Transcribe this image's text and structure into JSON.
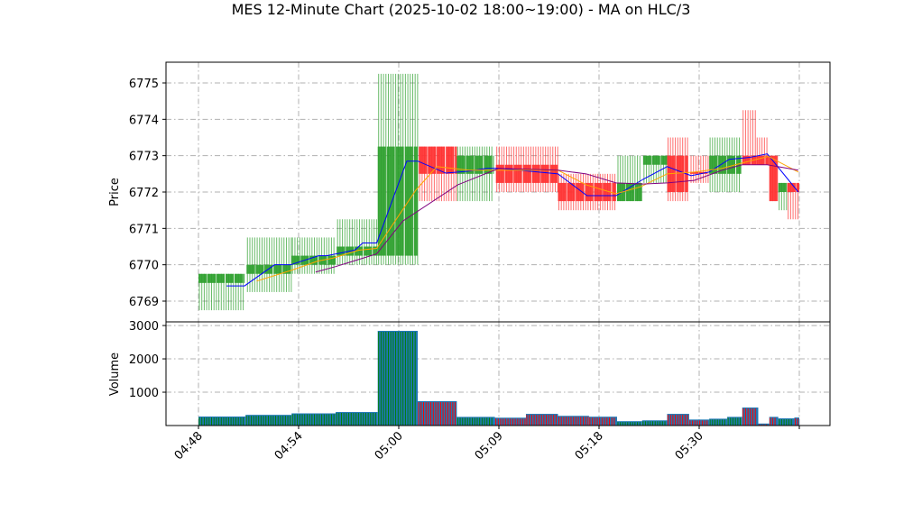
{
  "chart_data": [
    {
      "type": "candlestick",
      "title": "MES 12-Minute Chart (2025-10-02 18:00~19:00) - MA on HLC/3",
      "ylabel": "Price",
      "ylim": [
        6768.43,
        6775.57
      ],
      "yticks": [
        6769,
        6770,
        6771,
        6772,
        6773,
        6774,
        6775
      ],
      "grid": true,
      "colors": {
        "up": "#2ca02c",
        "down": "#ff3030",
        "ma_fast": "#0000ff",
        "ma_mid": "#ffa500",
        "ma_slow": "#800080"
      },
      "x_tick_labels": [
        "04:48",
        "04:54",
        "05:00",
        "05:09",
        "05:18",
        "05:30",
        ""
      ],
      "bars": [
        {
          "x": [
            0,
            0.46
          ],
          "o": 6769.5,
          "h": 6769.75,
          "l": 6768.75,
          "c": 6769.75
        },
        {
          "x": [
            0.48,
            0.93
          ],
          "o": 6769.75,
          "h": 6770.75,
          "l": 6769.25,
          "c": 6770.0
        },
        {
          "x": [
            0.93,
            1.37
          ],
          "o": 6770.0,
          "h": 6770.75,
          "l": 6769.75,
          "c": 6770.25
        },
        {
          "x": [
            1.38,
            1.79
          ],
          "o": 6770.25,
          "h": 6771.25,
          "l": 6770.0,
          "c": 6770.5
        },
        {
          "x": [
            1.79,
            2.19
          ],
          "o": 6770.25,
          "h": 6775.25,
          "l": 6770.0,
          "c": 6773.25
        },
        {
          "x": [
            2.2,
            2.58
          ],
          "o": 6773.25,
          "h": 6773.25,
          "l": 6771.75,
          "c": 6772.5
        },
        {
          "x": [
            2.58,
            2.95
          ],
          "o": 6772.5,
          "h": 6773.25,
          "l": 6771.75,
          "c": 6773.0
        },
        {
          "x": [
            2.97,
            3.59
          ],
          "o": 6772.75,
          "h": 6773.25,
          "l": 6772.0,
          "c": 6772.25
        },
        {
          "x": [
            3.59,
            4.17
          ],
          "o": 6772.25,
          "h": 6772.5,
          "l": 6771.5,
          "c": 6771.75
        },
        {
          "x": [
            4.18,
            4.43
          ],
          "o": 6771.75,
          "h": 6773.0,
          "l": 6771.75,
          "c": 6772.25
        },
        {
          "x": [
            4.44,
            4.68
          ],
          "o": 6772.75,
          "h": 6773.0,
          "l": 6772.25,
          "c": 6773.0
        },
        {
          "x": [
            4.68,
            4.89
          ],
          "o": 6773.0,
          "h": 6773.5,
          "l": 6771.75,
          "c": 6772.0
        },
        {
          "x": [
            4.91,
            5.09
          ],
          "o": 6772.55,
          "h": 6773.0,
          "l": 6772.25,
          "c": 6772.5
        },
        {
          "x": [
            5.1,
            5.42
          ],
          "o": 6772.5,
          "h": 6773.5,
          "l": 6772.0,
          "c": 6773.0
        },
        {
          "x": [
            5.43,
            5.57
          ],
          "o": 6773.0,
          "h": 6774.25,
          "l": 6772.75,
          "c": 6772.75
        },
        {
          "x": [
            5.57,
            5.7
          ],
          "o": 6773.0,
          "h": 6773.5,
          "l": 6772.75,
          "c": 6772.75
        },
        {
          "x": [
            5.7,
            5.79
          ],
          "o": 6773.0,
          "h": 6773.0,
          "l": 6771.75,
          "c": 6771.75
        },
        {
          "x": [
            5.79,
            5.88
          ],
          "o": 6772.0,
          "h": 6772.25,
          "l": 6771.5,
          "c": 6772.25
        },
        {
          "x": [
            5.88,
            6.0
          ],
          "o": 6772.25,
          "h": 6772.25,
          "l": 6771.25,
          "c": 6772.0
        }
      ],
      "series": [
        {
          "key": "ma_fast",
          "x": [
            0.28,
            0.46,
            0.76,
            0.92,
            1.2,
            1.28,
            1.56,
            1.64,
            1.78,
            2.08,
            2.19,
            2.47,
            2.68,
            2.88,
            3.01,
            3.59,
            3.88,
            4.17,
            4.44,
            4.68,
            4.92,
            5.1,
            5.3,
            5.5,
            5.68,
            5.99
          ],
          "y": [
            6769.42,
            6769.42,
            6770.0,
            6770.0,
            6770.25,
            6770.25,
            6770.4,
            6770.6,
            6770.6,
            6772.85,
            6772.85,
            6772.52,
            6772.57,
            6772.65,
            6772.65,
            6772.5,
            6771.9,
            6771.9,
            6772.35,
            6772.7,
            6772.45,
            6772.55,
            6772.9,
            6772.95,
            6773.05,
            6772.0
          ]
        },
        {
          "key": "ma_mid",
          "x": [
            0.58,
            0.93,
            1.19,
            1.34,
            1.6,
            1.78,
            2.17,
            2.38,
            2.7,
            2.97,
            3.59,
            3.87,
            4.17,
            4.42,
            4.68,
            4.95,
            5.23,
            5.43,
            5.69,
            5.99
          ],
          "y": [
            6769.55,
            6769.85,
            6770.1,
            6770.18,
            6770.4,
            6770.45,
            6772.05,
            6772.7,
            6772.6,
            6772.6,
            6772.6,
            6772.2,
            6771.95,
            6772.15,
            6772.5,
            6772.55,
            6772.65,
            6772.8,
            6772.98,
            6772.55
          ]
        },
        {
          "key": "ma_slow",
          "x": [
            1.17,
            1.37,
            1.78,
            2.04,
            2.59,
            3.0,
            3.59,
            3.87,
            4.17,
            4.44,
            4.68,
            4.95,
            5.23,
            5.43,
            5.68,
            5.99
          ],
          "y": [
            6769.8,
            6769.95,
            6770.3,
            6771.2,
            6772.2,
            6772.65,
            6772.6,
            6772.5,
            6772.25,
            6772.22,
            6772.25,
            6772.32,
            6772.6,
            6772.75,
            6772.75,
            6772.6
          ]
        }
      ]
    },
    {
      "type": "bar",
      "ylabel": "Volume",
      "ylim": [
        0,
        3110
      ],
      "yticks": [
        1000,
        2000,
        3000
      ],
      "grid": true,
      "colors": {
        "bar": "#1f77b4",
        "up": "#008000",
        "down": "#ff0000"
      },
      "bars": [
        {
          "x": [
            0,
            0.47
          ],
          "v": 270,
          "dir": "up"
        },
        {
          "x": [
            0.47,
            0.93
          ],
          "v": 320,
          "dir": "up"
        },
        {
          "x": [
            0.93,
            1.37
          ],
          "v": 365,
          "dir": "up"
        },
        {
          "x": [
            1.37,
            1.79
          ],
          "v": 405,
          "dir": "up"
        },
        {
          "x": [
            1.79,
            2.19
          ],
          "v": 2840,
          "dir": "up"
        },
        {
          "x": [
            2.19,
            2.58
          ],
          "v": 730,
          "dir": "down"
        },
        {
          "x": [
            2.58,
            2.96
          ],
          "v": 260,
          "dir": "up"
        },
        {
          "x": [
            2.96,
            3.27
          ],
          "v": 235,
          "dir": "down"
        },
        {
          "x": [
            3.27,
            3.59
          ],
          "v": 350,
          "dir": "down"
        },
        {
          "x": [
            3.59,
            3.9
          ],
          "v": 290,
          "dir": "down"
        },
        {
          "x": [
            3.9,
            4.18
          ],
          "v": 265,
          "dir": "down"
        },
        {
          "x": [
            4.18,
            4.43
          ],
          "v": 130,
          "dir": "up"
        },
        {
          "x": [
            4.43,
            4.68
          ],
          "v": 155,
          "dir": "up"
        },
        {
          "x": [
            4.68,
            4.9
          ],
          "v": 350,
          "dir": "down"
        },
        {
          "x": [
            4.9,
            5.1
          ],
          "v": 180,
          "dir": "down"
        },
        {
          "x": [
            5.1,
            5.28
          ],
          "v": 205,
          "dir": "up"
        },
        {
          "x": [
            5.28,
            5.43
          ],
          "v": 260,
          "dir": "up"
        },
        {
          "x": [
            5.43,
            5.59
          ],
          "v": 540,
          "dir": "down"
        },
        {
          "x": [
            5.59,
            5.7
          ],
          "v": 60,
          "dir": "down"
        },
        {
          "x": [
            5.7,
            5.79
          ],
          "v": 260,
          "dir": "down"
        },
        {
          "x": [
            5.79,
            5.95
          ],
          "v": 215,
          "dir": "up"
        },
        {
          "x": [
            5.95,
            6.0
          ],
          "v": 240,
          "dir": "down"
        }
      ]
    }
  ]
}
